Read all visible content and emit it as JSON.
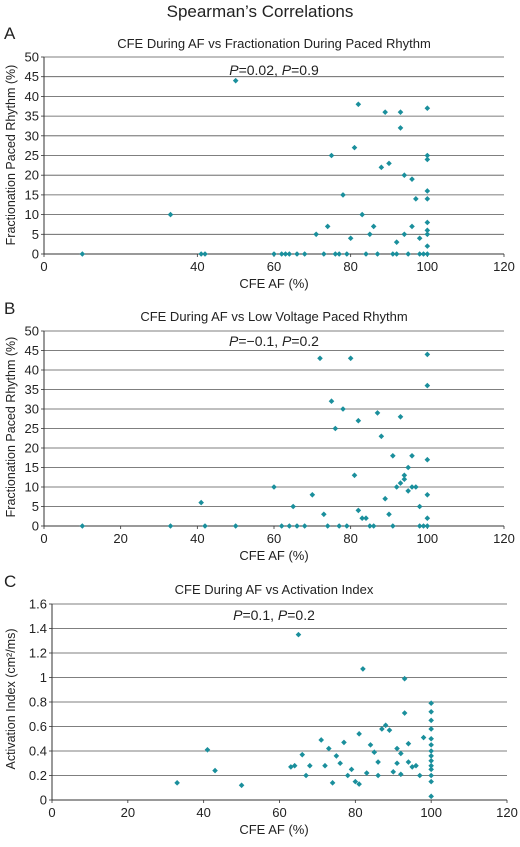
{
  "figure": {
    "title": "Spearman’s Correlations"
  },
  "colors": {
    "marker": "#1a8f9c",
    "grid": "#555555",
    "axis": "#333333"
  },
  "panels": [
    {
      "letter": "A",
      "title": "CFE During AF vs Fractionation During Paced Rhythm",
      "annotation_prefix1": "P",
      "annotation_mid": "=0.02, ",
      "annotation_prefix2": "P",
      "annotation_suffix": "=0.9",
      "xlabel": "CFE AF (%)",
      "ylabel": "Fractionation Paced Rhythm (%)"
    },
    {
      "letter": "B",
      "title": "CFE During AF vs Low Voltage Paced Rhythm",
      "annotation_prefix1": "P",
      "annotation_mid": "=−0.1, ",
      "annotation_prefix2": "P",
      "annotation_suffix": "=0.2",
      "xlabel": "CFE AF (%)",
      "ylabel": "Fractionation Paced Rhythm (%)"
    },
    {
      "letter": "C",
      "title": "CFE During AF vs Activation Index",
      "annotation_prefix1": "P",
      "annotation_mid": "=0.1, ",
      "annotation_prefix2": "P",
      "annotation_suffix": "=0.2",
      "xlabel": "CFE AF (%)",
      "ylabel": "Activation Index (cm²/ms)"
    }
  ],
  "chart_data": [
    {
      "type": "scatter",
      "title": "CFE During AF vs Fractionation During Paced Rhythm",
      "xlabel": "CFE AF (%)",
      "ylabel": "Fractionation Paced Rhythm (%)",
      "xlim": [
        0,
        120
      ],
      "ylim": [
        0,
        50
      ],
      "xticks": [
        "0",
        "40",
        "60",
        "80",
        "100",
        "120"
      ],
      "xtick_values": [
        0,
        40,
        60,
        80,
        100,
        120
      ],
      "yticks": [
        0,
        5,
        10,
        15,
        20,
        25,
        30,
        35,
        40,
        45,
        50
      ],
      "grid": "horizontal",
      "points": [
        [
          10,
          0
        ],
        [
          33,
          10
        ],
        [
          41,
          0
        ],
        [
          42,
          0
        ],
        [
          50,
          44
        ],
        [
          60,
          0
        ],
        [
          62,
          0
        ],
        [
          63,
          0
        ],
        [
          64,
          0
        ],
        [
          66,
          0
        ],
        [
          68,
          0
        ],
        [
          71,
          5
        ],
        [
          73,
          0
        ],
        [
          74,
          7
        ],
        [
          75,
          25
        ],
        [
          76,
          0
        ],
        [
          77,
          0
        ],
        [
          78,
          15
        ],
        [
          79,
          0
        ],
        [
          80,
          4
        ],
        [
          81,
          27
        ],
        [
          82,
          38
        ],
        [
          83,
          10
        ],
        [
          84,
          0
        ],
        [
          85,
          5
        ],
        [
          86,
          7
        ],
        [
          87,
          0
        ],
        [
          88,
          22
        ],
        [
          89,
          36
        ],
        [
          90,
          23
        ],
        [
          91,
          0
        ],
        [
          92,
          0
        ],
        [
          92,
          3
        ],
        [
          93,
          36
        ],
        [
          93,
          32
        ],
        [
          94,
          20
        ],
        [
          94,
          5
        ],
        [
          95,
          0
        ],
        [
          96,
          7
        ],
        [
          96,
          19
        ],
        [
          97,
          14
        ],
        [
          98,
          4
        ],
        [
          98,
          0
        ],
        [
          99,
          0
        ],
        [
          100,
          37
        ],
        [
          100,
          25
        ],
        [
          100,
          24
        ],
        [
          100,
          16
        ],
        [
          100,
          14
        ],
        [
          100,
          8
        ],
        [
          100,
          6
        ],
        [
          100,
          2
        ],
        [
          100,
          0
        ],
        [
          100,
          5
        ]
      ]
    },
    {
      "type": "scatter",
      "title": "CFE During AF vs Low Voltage Paced Rhythm",
      "xlabel": "CFE AF (%)",
      "ylabel": "Fractionation Paced Rhythm (%)",
      "xlim": [
        0,
        120
      ],
      "ylim": [
        0,
        50
      ],
      "xticks": [
        "0",
        "20",
        "40",
        "60",
        "80",
        "100",
        "120"
      ],
      "xtick_values": [
        0,
        20,
        40,
        60,
        80,
        100,
        120
      ],
      "yticks": [
        0,
        5,
        10,
        15,
        20,
        25,
        30,
        35,
        40,
        45,
        50
      ],
      "grid": "horizontal",
      "points": [
        [
          10,
          0
        ],
        [
          33,
          0
        ],
        [
          41,
          6
        ],
        [
          42,
          0
        ],
        [
          50,
          0
        ],
        [
          60,
          10
        ],
        [
          62,
          0
        ],
        [
          64,
          0
        ],
        [
          65,
          5
        ],
        [
          66,
          0
        ],
        [
          68,
          0
        ],
        [
          70,
          8
        ],
        [
          72,
          43
        ],
        [
          73,
          3
        ],
        [
          74,
          0
        ],
        [
          75,
          32
        ],
        [
          76,
          25
        ],
        [
          77,
          0
        ],
        [
          78,
          30
        ],
        [
          79,
          0
        ],
        [
          80,
          43
        ],
        [
          81,
          13
        ],
        [
          82,
          27
        ],
        [
          82,
          4
        ],
        [
          83,
          2
        ],
        [
          84,
          2
        ],
        [
          85,
          0
        ],
        [
          86,
          0
        ],
        [
          87,
          29
        ],
        [
          88,
          23
        ],
        [
          89,
          7
        ],
        [
          90,
          3
        ],
        [
          91,
          0
        ],
        [
          91,
          18
        ],
        [
          92,
          10
        ],
        [
          93,
          28
        ],
        [
          93,
          11
        ],
        [
          94,
          12
        ],
        [
          94,
          13
        ],
        [
          95,
          9
        ],
        [
          95,
          15
        ],
        [
          96,
          18
        ],
        [
          96,
          10
        ],
        [
          97,
          10
        ],
        [
          98,
          5
        ],
        [
          98,
          0
        ],
        [
          99,
          0
        ],
        [
          100,
          44
        ],
        [
          100,
          36
        ],
        [
          100,
          17
        ],
        [
          100,
          8
        ],
        [
          100,
          2
        ],
        [
          100,
          0
        ]
      ]
    },
    {
      "type": "scatter",
      "title": "CFE During AF vs Activation Index",
      "xlabel": "CFE AF (%)",
      "ylabel": "Activation Index (cm²/ms)",
      "xlim": [
        0,
        120
      ],
      "ylim": [
        0,
        1.6
      ],
      "xticks": [
        "0",
        "20",
        "40",
        "60",
        "80",
        "100",
        "120"
      ],
      "xtick_values": [
        0,
        20,
        40,
        60,
        80,
        100,
        120
      ],
      "yticks": [
        0,
        0.2,
        0.4,
        0.6,
        0.8,
        1,
        1.2,
        1.4,
        1.6
      ],
      "ytick_labels": [
        "0",
        "0.2",
        "0.4",
        "0.6",
        "0.8",
        "1",
        "1.2",
        "1.4",
        "1.6"
      ],
      "grid": "horizontal",
      "points": [
        [
          33,
          0.14
        ],
        [
          41,
          0.41
        ],
        [
          43,
          0.24
        ],
        [
          50,
          0.12
        ],
        [
          63,
          0.27
        ],
        [
          64,
          0.28
        ],
        [
          65,
          1.35
        ],
        [
          66,
          0.37
        ],
        [
          67,
          0.2
        ],
        [
          68,
          0.28
        ],
        [
          71,
          0.49
        ],
        [
          72,
          0.28
        ],
        [
          73,
          0.42
        ],
        [
          74,
          0.14
        ],
        [
          75,
          0.36
        ],
        [
          76,
          0.3
        ],
        [
          77,
          0.47
        ],
        [
          78,
          0.2
        ],
        [
          79,
          0.25
        ],
        [
          80,
          0.15
        ],
        [
          81,
          0.13
        ],
        [
          81,
          0.54
        ],
        [
          82,
          1.07
        ],
        [
          83,
          0.22
        ],
        [
          84,
          0.45
        ],
        [
          85,
          0.39
        ],
        [
          86,
          0.31
        ],
        [
          86,
          0.2
        ],
        [
          87,
          0.58
        ],
        [
          88,
          0.61
        ],
        [
          89,
          0.57
        ],
        [
          90,
          0.23
        ],
        [
          91,
          0.42
        ],
        [
          91,
          0.3
        ],
        [
          92,
          0.38
        ],
        [
          92,
          0.21
        ],
        [
          93,
          0.99
        ],
        [
          93,
          0.71
        ],
        [
          94,
          0.31
        ],
        [
          94,
          0.46
        ],
        [
          95,
          0.27
        ],
        [
          96,
          0.28
        ],
        [
          97,
          0.2
        ],
        [
          98,
          0.51
        ],
        [
          100,
          0.79
        ],
        [
          100,
          0.72
        ],
        [
          100,
          0.65
        ],
        [
          100,
          0.58
        ],
        [
          100,
          0.5
        ],
        [
          100,
          0.45
        ],
        [
          100,
          0.4
        ],
        [
          100,
          0.36
        ],
        [
          100,
          0.32
        ],
        [
          100,
          0.28
        ],
        [
          100,
          0.25
        ],
        [
          100,
          0.2
        ],
        [
          100,
          0.15
        ],
        [
          100,
          0.03
        ]
      ]
    }
  ]
}
